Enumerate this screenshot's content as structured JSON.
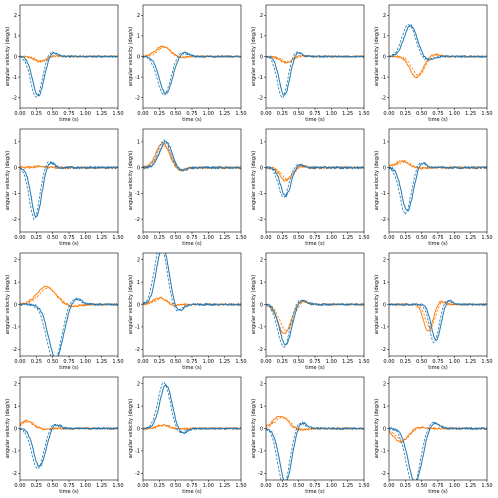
{
  "chart_data": {
    "type": "line",
    "layout": "4x4 grid of line plots",
    "xlabel": "time (s)",
    "ylabel": "angular velocity (deg/s)",
    "xlim": [
      0,
      1.5
    ],
    "xticks": [
      "0.00",
      "0.25",
      "0.50",
      "0.75",
      "1.00",
      "1.25",
      "1.50"
    ],
    "colors": {
      "blue": "#1f77b4",
      "orange": "#ff7f0e"
    },
    "line_styles": [
      "solid",
      "dashed"
    ],
    "series_note": "each panel: blue solid + blue dashed, orange solid + orange dashed",
    "panels": [
      {
        "ylim": [
          -2.5,
          2.5
        ],
        "yticks": [
          -2,
          -1,
          0,
          1,
          2
        ],
        "blue": {
          "peak": -1.9,
          "tpeak": 0.28,
          "width": 0.12
        },
        "orange": {
          "peak": -0.25,
          "tpeak": 0.3,
          "width": 0.12
        }
      },
      {
        "ylim": [
          -2.5,
          2.5
        ],
        "yticks": [
          -2,
          -1,
          0,
          1,
          2
        ],
        "blue": {
          "peak": -1.8,
          "tpeak": 0.35,
          "width": 0.14
        },
        "orange": {
          "peak": 0.5,
          "tpeak": 0.3,
          "width": 0.15
        }
      },
      {
        "ylim": [
          -2.5,
          2.5
        ],
        "yticks": [
          -2,
          -1,
          0,
          1,
          2
        ],
        "blue": {
          "peak": -1.9,
          "tpeak": 0.28,
          "width": 0.11
        },
        "orange": {
          "peak": -0.3,
          "tpeak": 0.3,
          "width": 0.12
        }
      },
      {
        "ylim": [
          -2.5,
          2.5
        ],
        "yticks": [
          -2,
          -1,
          0,
          1,
          2
        ],
        "blue": {
          "peak": 1.5,
          "tpeak": 0.33,
          "width": 0.14
        },
        "orange": {
          "peak": -1.0,
          "tpeak": 0.42,
          "width": 0.14
        }
      },
      {
        "ylim": [
          -2.5,
          1.5
        ],
        "yticks": [
          -2,
          -1,
          0,
          1
        ],
        "blue": {
          "peak": -1.9,
          "tpeak": 0.25,
          "width": 0.11
        },
        "orange": {
          "peak": 0.05,
          "tpeak": 0.3,
          "width": 0.12
        }
      },
      {
        "ylim": [
          -2.5,
          1.5
        ],
        "yticks": [
          -2,
          -1,
          0,
          1
        ],
        "blue": {
          "peak": 1.0,
          "tpeak": 0.35,
          "width": 0.13
        },
        "orange": {
          "peak": 0.95,
          "tpeak": 0.3,
          "width": 0.14
        }
      },
      {
        "ylim": [
          -2.5,
          1.5
        ],
        "yticks": [
          -2,
          -1,
          0,
          1
        ],
        "blue": {
          "peak": -1.1,
          "tpeak": 0.3,
          "width": 0.11
        },
        "orange": {
          "peak": -0.5,
          "tpeak": 0.3,
          "width": 0.12
        }
      },
      {
        "ylim": [
          -2.5,
          1.5
        ],
        "yticks": [
          -2,
          -1,
          0,
          1
        ],
        "blue": {
          "peak": -1.7,
          "tpeak": 0.28,
          "width": 0.12
        },
        "orange": {
          "peak": 0.25,
          "tpeak": 0.2,
          "width": 0.15
        }
      },
      {
        "ylim": [
          -2.3,
          2.3
        ],
        "yticks": [
          -2,
          -1,
          0,
          1,
          2
        ],
        "blue": {
          "peak": -2.4,
          "tpeak": 0.55,
          "width": 0.16
        },
        "orange": {
          "peak": 0.8,
          "tpeak": 0.4,
          "width": 0.2
        }
      },
      {
        "ylim": [
          -2.3,
          2.3
        ],
        "yticks": [
          -2,
          -1,
          0,
          1,
          2
        ],
        "blue": {
          "peak": 2.6,
          "tpeak": 0.3,
          "width": 0.13
        },
        "orange": {
          "peak": 0.3,
          "tpeak": 0.25,
          "width": 0.13
        }
      },
      {
        "ylim": [
          -2.3,
          2.3
        ],
        "yticks": [
          -2,
          -1,
          0,
          1,
          2
        ],
        "blue": {
          "peak": -1.8,
          "tpeak": 0.3,
          "width": 0.13
        },
        "orange": {
          "peak": -1.3,
          "tpeak": 0.28,
          "width": 0.14
        }
      },
      {
        "ylim": [
          -2.3,
          2.3
        ],
        "yticks": [
          -2,
          -1,
          0,
          1,
          2
        ],
        "blue": {
          "peak": -1.6,
          "tpeak": 0.72,
          "width": 0.1
        },
        "orange": {
          "peak": -1.2,
          "tpeak": 0.6,
          "width": 0.1
        }
      },
      {
        "ylim": [
          -2.3,
          2.3
        ],
        "yticks": [
          -2,
          -1,
          0,
          1,
          2
        ],
        "blue": {
          "peak": -1.7,
          "tpeak": 0.3,
          "width": 0.13
        },
        "orange": {
          "peak": 0.35,
          "tpeak": 0.1,
          "width": 0.13
        }
      },
      {
        "ylim": [
          -2.3,
          2.3
        ],
        "yticks": [
          -2,
          -1,
          0,
          1,
          2
        ],
        "blue": {
          "peak": 1.95,
          "tpeak": 0.35,
          "width": 0.13
        },
        "orange": {
          "peak": 0.15,
          "tpeak": 0.3,
          "width": 0.13
        }
      },
      {
        "ylim": [
          -2.3,
          2.3
        ],
        "yticks": [
          -2,
          -1,
          0,
          1,
          2
        ],
        "blue": {
          "peak": -2.4,
          "tpeak": 0.3,
          "width": 0.13
        },
        "orange": {
          "peak": 0.55,
          "tpeak": 0.22,
          "width": 0.16
        }
      },
      {
        "ylim": [
          -2.3,
          2.3
        ],
        "yticks": [
          -2,
          -1,
          0,
          1,
          2
        ],
        "blue": {
          "peak": -2.4,
          "tpeak": 0.4,
          "width": 0.15
        },
        "orange": {
          "peak": -0.6,
          "tpeak": 0.18,
          "width": 0.15
        }
      }
    ]
  }
}
